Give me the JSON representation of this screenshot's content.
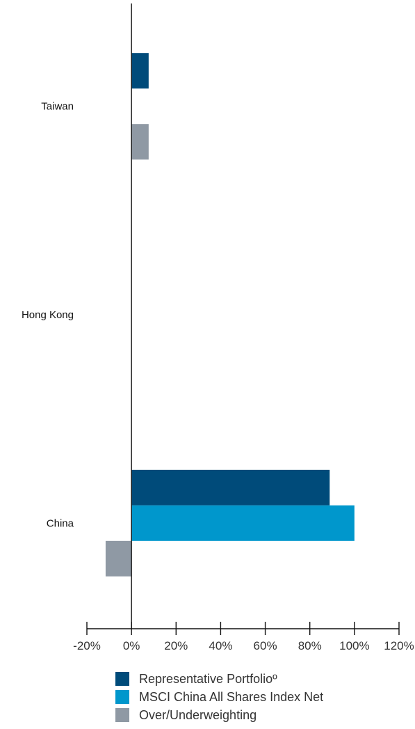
{
  "chart_data": {
    "type": "bar",
    "orientation": "horizontal",
    "categories": [
      "Taiwan",
      "Hong Kong",
      "China"
    ],
    "series": [
      {
        "name": "Representative Portfolioº",
        "color": "#004b7a",
        "values": [
          7.7,
          0,
          88.9
        ]
      },
      {
        "name": "MSCI China All Shares Index Net",
        "color": "#0097cc",
        "values": [
          0,
          0,
          100
        ]
      },
      {
        "name": "Over/Underweighting",
        "color": "#8f99a4",
        "values": [
          7.7,
          0,
          -11.6
        ]
      }
    ],
    "xlim": [
      -20,
      120
    ],
    "xticks": [
      "-20%",
      "0%",
      "20%",
      "40%",
      "60%",
      "80%",
      "100%",
      "120%"
    ],
    "grid": false,
    "legend_position": "bottom"
  }
}
